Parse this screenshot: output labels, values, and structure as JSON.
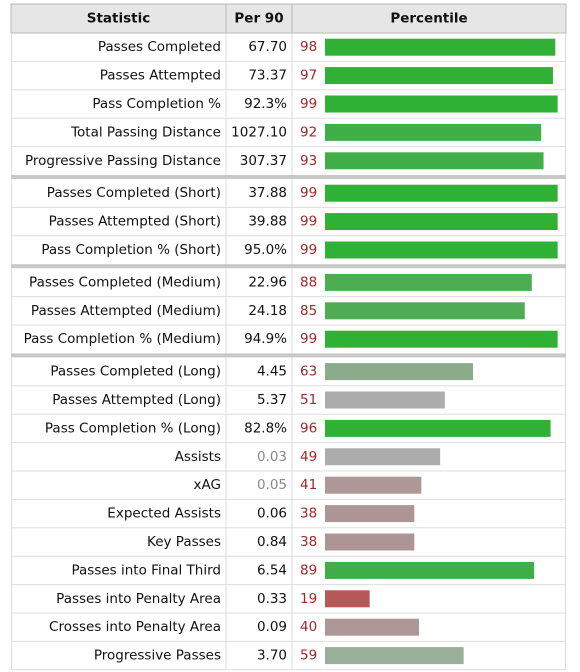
{
  "table": {
    "headers": {
      "statistic": "Statistic",
      "per90": "Per 90",
      "percentile": "Percentile"
    }
  },
  "colors": {
    "header_bg": "#e6e6e6",
    "header_border": "#b8b8b8",
    "row_border": "#dddddd",
    "group_separator": "#c8c8c8",
    "text": "#111111",
    "value_muted": "#8a8a8a",
    "percentile_text": "#a02828"
  },
  "chart_data": {
    "type": "table",
    "percentile_range": [
      0,
      100
    ],
    "columns": [
      "Statistic",
      "Per 90",
      "Percentile"
    ],
    "groups": [
      [
        {
          "stat": "Passes Completed",
          "per90": "67.70",
          "pct": 98,
          "color": "#2eb135"
        },
        {
          "stat": "Passes Attempted",
          "per90": "73.37",
          "pct": 97,
          "color": "#2eb135"
        },
        {
          "stat": "Pass Completion %",
          "per90": "92.3%",
          "pct": 99,
          "color": "#2eb135"
        },
        {
          "stat": "Total Passing Distance",
          "per90": "1027.10",
          "pct": 92,
          "color": "#41af47"
        },
        {
          "stat": "Progressive Passing Distance",
          "per90": "307.37",
          "pct": 93,
          "color": "#41af47"
        }
      ],
      [
        {
          "stat": "Passes Completed (Short)",
          "per90": "37.88",
          "pct": 99,
          "color": "#2eb135"
        },
        {
          "stat": "Passes Attempted (Short)",
          "per90": "39.88",
          "pct": 99,
          "color": "#2eb135"
        },
        {
          "stat": "Pass Completion % (Short)",
          "per90": "95.0%",
          "pct": 99,
          "color": "#2eb135"
        }
      ],
      [
        {
          "stat": "Passes Completed (Medium)",
          "per90": "22.96",
          "pct": 88,
          "color": "#4bad50"
        },
        {
          "stat": "Passes Attempted (Medium)",
          "per90": "24.18",
          "pct": 85,
          "color": "#4fab54"
        },
        {
          "stat": "Pass Completion % (Medium)",
          "per90": "94.9%",
          "pct": 99,
          "color": "#2eb135"
        }
      ],
      [
        {
          "stat": "Passes Completed (Long)",
          "per90": "4.45",
          "pct": 63,
          "color": "#8aac8a"
        },
        {
          "stat": "Passes Attempted (Long)",
          "per90": "5.37",
          "pct": 51,
          "color": "#acacac"
        },
        {
          "stat": "Pass Completion % (Long)",
          "per90": "82.8%",
          "pct": 96,
          "color": "#2eb135"
        },
        {
          "stat": "Assists",
          "per90": "0.03",
          "pct": 49,
          "color": "#acacac",
          "muted": true
        },
        {
          "stat": "xAG",
          "per90": "0.05",
          "pct": 41,
          "color": "#ae9797",
          "muted": true
        },
        {
          "stat": "Expected Assists",
          "per90": "0.06",
          "pct": 38,
          "color": "#ae9595"
        },
        {
          "stat": "Key Passes",
          "per90": "0.84",
          "pct": 38,
          "color": "#ae9595"
        },
        {
          "stat": "Passes into Final Third",
          "per90": "6.54",
          "pct": 89,
          "color": "#41af47"
        },
        {
          "stat": "Passes into Penalty Area",
          "per90": "0.33",
          "pct": 19,
          "color": "#b55858"
        },
        {
          "stat": "Crosses into Penalty Area",
          "per90": "0.09",
          "pct": 40,
          "color": "#ae9797"
        },
        {
          "stat": "Progressive Passes",
          "per90": "3.70",
          "pct": 59,
          "color": "#9aaf9a"
        }
      ]
    ]
  }
}
